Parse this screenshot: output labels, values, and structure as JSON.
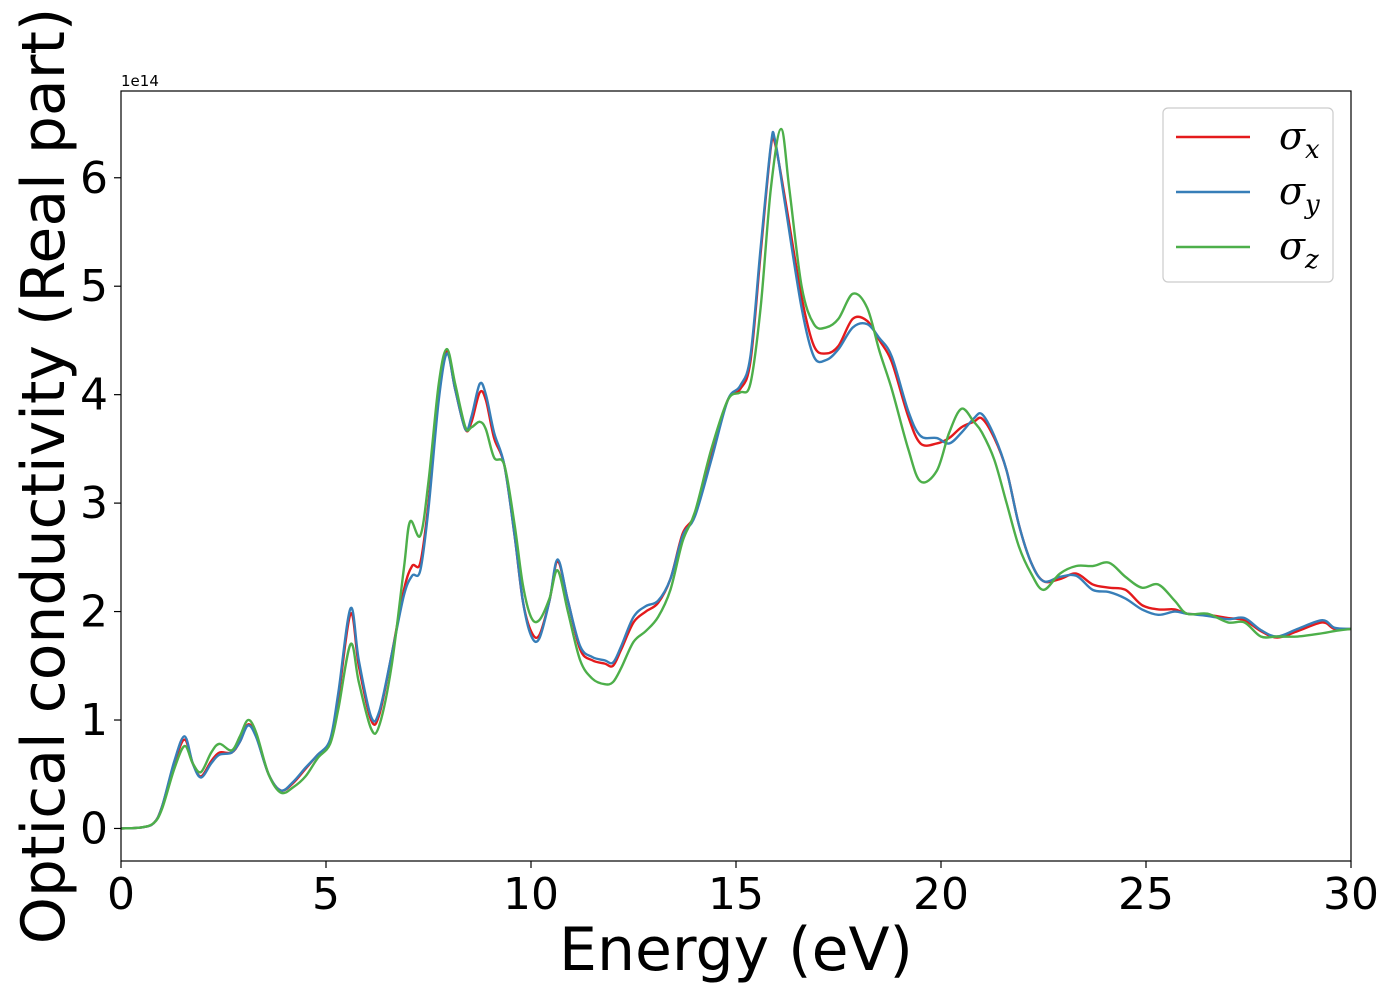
{
  "chart_data": {
    "type": "line",
    "xlabel": "Energy (eV)",
    "ylabel": "Optical conductivity (Real part)",
    "y_offset_label": "1e14",
    "y_scale": 100000000000000.0,
    "xlim": [
      0,
      30
    ],
    "ylim": [
      -0.3,
      6.8
    ],
    "xticks": [
      0,
      5,
      10,
      15,
      20,
      25,
      30
    ],
    "yticks": [
      0,
      1,
      2,
      3,
      4,
      5,
      6
    ],
    "xtick_labels": [
      "0",
      "5",
      "10",
      "15",
      "20",
      "25",
      "30"
    ],
    "ytick_labels": [
      "0",
      "1",
      "2",
      "3",
      "4",
      "5",
      "6"
    ],
    "grid": false,
    "legend_position": "top-right",
    "series": [
      {
        "name": "σx",
        "base": "σ",
        "sub": "x",
        "color": "#e41a1c",
        "points": [
          [
            0,
            0
          ],
          [
            0.5,
            0.01
          ],
          [
            0.8,
            0.05
          ],
          [
            1.0,
            0.2
          ],
          [
            1.3,
            0.6
          ],
          [
            1.55,
            0.82
          ],
          [
            1.75,
            0.6
          ],
          [
            1.95,
            0.48
          ],
          [
            2.2,
            0.62
          ],
          [
            2.4,
            0.7
          ],
          [
            2.7,
            0.7
          ],
          [
            2.9,
            0.8
          ],
          [
            3.1,
            0.96
          ],
          [
            3.3,
            0.85
          ],
          [
            3.6,
            0.5
          ],
          [
            3.9,
            0.35
          ],
          [
            4.2,
            0.42
          ],
          [
            4.5,
            0.55
          ],
          [
            4.8,
            0.68
          ],
          [
            5.1,
            0.8
          ],
          [
            5.3,
            1.2
          ],
          [
            5.6,
            1.98
          ],
          [
            5.8,
            1.5
          ],
          [
            6.1,
            1.0
          ],
          [
            6.3,
            1.05
          ],
          [
            6.6,
            1.6
          ],
          [
            6.9,
            2.2
          ],
          [
            7.1,
            2.42
          ],
          [
            7.3,
            2.45
          ],
          [
            7.5,
            3.0
          ],
          [
            7.75,
            4.0
          ],
          [
            7.95,
            4.4
          ],
          [
            8.15,
            4.05
          ],
          [
            8.4,
            3.68
          ],
          [
            8.55,
            3.75
          ],
          [
            8.75,
            4.02
          ],
          [
            8.9,
            3.95
          ],
          [
            9.1,
            3.6
          ],
          [
            9.35,
            3.35
          ],
          [
            9.6,
            2.7
          ],
          [
            9.8,
            2.1
          ],
          [
            10.0,
            1.82
          ],
          [
            10.2,
            1.78
          ],
          [
            10.45,
            2.1
          ],
          [
            10.65,
            2.46
          ],
          [
            10.9,
            2.1
          ],
          [
            11.2,
            1.65
          ],
          [
            11.5,
            1.55
          ],
          [
            11.8,
            1.52
          ],
          [
            12.0,
            1.5
          ],
          [
            12.2,
            1.65
          ],
          [
            12.5,
            1.9
          ],
          [
            12.8,
            2.0
          ],
          [
            13.1,
            2.08
          ],
          [
            13.4,
            2.3
          ],
          [
            13.7,
            2.72
          ],
          [
            14.0,
            2.9
          ],
          [
            14.4,
            3.45
          ],
          [
            14.8,
            3.95
          ],
          [
            15.1,
            4.05
          ],
          [
            15.35,
            4.3
          ],
          [
            15.6,
            5.3
          ],
          [
            15.85,
            6.28
          ],
          [
            15.95,
            6.32
          ],
          [
            16.2,
            5.8
          ],
          [
            16.6,
            4.9
          ],
          [
            16.9,
            4.45
          ],
          [
            17.2,
            4.38
          ],
          [
            17.5,
            4.45
          ],
          [
            17.85,
            4.7
          ],
          [
            18.2,
            4.68
          ],
          [
            18.5,
            4.5
          ],
          [
            18.8,
            4.3
          ],
          [
            19.2,
            3.8
          ],
          [
            19.5,
            3.55
          ],
          [
            19.9,
            3.55
          ],
          [
            20.2,
            3.6
          ],
          [
            20.5,
            3.7
          ],
          [
            20.8,
            3.75
          ],
          [
            21.0,
            3.78
          ],
          [
            21.3,
            3.6
          ],
          [
            21.6,
            3.3
          ],
          [
            21.9,
            2.8
          ],
          [
            22.2,
            2.45
          ],
          [
            22.5,
            2.28
          ],
          [
            22.9,
            2.3
          ],
          [
            23.3,
            2.35
          ],
          [
            23.7,
            2.25
          ],
          [
            24.1,
            2.22
          ],
          [
            24.5,
            2.2
          ],
          [
            24.9,
            2.06
          ],
          [
            25.3,
            2.02
          ],
          [
            25.7,
            2.02
          ],
          [
            26.0,
            1.98
          ],
          [
            26.5,
            1.97
          ],
          [
            27.0,
            1.94
          ],
          [
            27.4,
            1.92
          ],
          [
            27.8,
            1.82
          ],
          [
            28.2,
            1.76
          ],
          [
            28.7,
            1.82
          ],
          [
            29.3,
            1.9
          ],
          [
            29.6,
            1.84
          ],
          [
            30.0,
            1.84
          ]
        ]
      },
      {
        "name": "σy",
        "base": "σ",
        "sub": "y",
        "color": "#377eb8",
        "points": [
          [
            0,
            0
          ],
          [
            0.5,
            0.01
          ],
          [
            0.8,
            0.05
          ],
          [
            1.0,
            0.2
          ],
          [
            1.3,
            0.62
          ],
          [
            1.55,
            0.85
          ],
          [
            1.75,
            0.6
          ],
          [
            1.95,
            0.47
          ],
          [
            2.2,
            0.6
          ],
          [
            2.4,
            0.68
          ],
          [
            2.7,
            0.7
          ],
          [
            2.9,
            0.8
          ],
          [
            3.1,
            0.95
          ],
          [
            3.3,
            0.84
          ],
          [
            3.6,
            0.5
          ],
          [
            3.9,
            0.35
          ],
          [
            4.2,
            0.43
          ],
          [
            4.5,
            0.56
          ],
          [
            4.8,
            0.68
          ],
          [
            5.1,
            0.82
          ],
          [
            5.3,
            1.25
          ],
          [
            5.6,
            2.03
          ],
          [
            5.8,
            1.55
          ],
          [
            6.1,
            1.03
          ],
          [
            6.3,
            1.08
          ],
          [
            6.6,
            1.6
          ],
          [
            6.9,
            2.15
          ],
          [
            7.1,
            2.33
          ],
          [
            7.3,
            2.38
          ],
          [
            7.5,
            2.95
          ],
          [
            7.75,
            3.95
          ],
          [
            7.95,
            4.38
          ],
          [
            8.15,
            4.05
          ],
          [
            8.4,
            3.68
          ],
          [
            8.55,
            3.8
          ],
          [
            8.75,
            4.1
          ],
          [
            8.9,
            4.0
          ],
          [
            9.1,
            3.65
          ],
          [
            9.35,
            3.35
          ],
          [
            9.6,
            2.7
          ],
          [
            9.8,
            2.1
          ],
          [
            10.0,
            1.78
          ],
          [
            10.2,
            1.75
          ],
          [
            10.45,
            2.1
          ],
          [
            10.65,
            2.48
          ],
          [
            10.9,
            2.1
          ],
          [
            11.2,
            1.68
          ],
          [
            11.5,
            1.58
          ],
          [
            11.8,
            1.55
          ],
          [
            12.0,
            1.53
          ],
          [
            12.2,
            1.68
          ],
          [
            12.5,
            1.95
          ],
          [
            12.8,
            2.05
          ],
          [
            13.1,
            2.1
          ],
          [
            13.4,
            2.3
          ],
          [
            13.7,
            2.7
          ],
          [
            14.0,
            2.88
          ],
          [
            14.4,
            3.4
          ],
          [
            14.8,
            3.95
          ],
          [
            15.1,
            4.08
          ],
          [
            15.35,
            4.35
          ],
          [
            15.6,
            5.35
          ],
          [
            15.85,
            6.3
          ],
          [
            15.95,
            6.35
          ],
          [
            16.2,
            5.75
          ],
          [
            16.6,
            4.8
          ],
          [
            16.9,
            4.35
          ],
          [
            17.2,
            4.32
          ],
          [
            17.5,
            4.42
          ],
          [
            17.85,
            4.62
          ],
          [
            18.2,
            4.65
          ],
          [
            18.5,
            4.52
          ],
          [
            18.8,
            4.35
          ],
          [
            19.2,
            3.85
          ],
          [
            19.5,
            3.62
          ],
          [
            19.9,
            3.6
          ],
          [
            20.2,
            3.55
          ],
          [
            20.5,
            3.65
          ],
          [
            20.8,
            3.78
          ],
          [
            21.0,
            3.82
          ],
          [
            21.3,
            3.62
          ],
          [
            21.6,
            3.3
          ],
          [
            21.9,
            2.8
          ],
          [
            22.2,
            2.45
          ],
          [
            22.5,
            2.28
          ],
          [
            22.9,
            2.32
          ],
          [
            23.3,
            2.33
          ],
          [
            23.7,
            2.2
          ],
          [
            24.1,
            2.18
          ],
          [
            24.5,
            2.12
          ],
          [
            24.9,
            2.02
          ],
          [
            25.3,
            1.97
          ],
          [
            25.7,
            2.0
          ],
          [
            26.0,
            1.98
          ],
          [
            26.5,
            1.96
          ],
          [
            27.0,
            1.93
          ],
          [
            27.4,
            1.94
          ],
          [
            27.8,
            1.83
          ],
          [
            28.2,
            1.77
          ],
          [
            28.7,
            1.84
          ],
          [
            29.3,
            1.92
          ],
          [
            29.6,
            1.85
          ],
          [
            30.0,
            1.84
          ]
        ]
      },
      {
        "name": "σz",
        "base": "σ",
        "sub": "z",
        "color": "#4daf4a",
        "points": [
          [
            0,
            0
          ],
          [
            0.5,
            0.01
          ],
          [
            0.8,
            0.05
          ],
          [
            1.0,
            0.18
          ],
          [
            1.3,
            0.55
          ],
          [
            1.55,
            0.76
          ],
          [
            1.75,
            0.6
          ],
          [
            1.95,
            0.52
          ],
          [
            2.2,
            0.7
          ],
          [
            2.4,
            0.78
          ],
          [
            2.7,
            0.72
          ],
          [
            2.9,
            0.85
          ],
          [
            3.1,
            1.0
          ],
          [
            3.3,
            0.88
          ],
          [
            3.6,
            0.5
          ],
          [
            3.9,
            0.33
          ],
          [
            4.2,
            0.38
          ],
          [
            4.5,
            0.48
          ],
          [
            4.8,
            0.65
          ],
          [
            5.1,
            0.78
          ],
          [
            5.3,
            1.1
          ],
          [
            5.6,
            1.7
          ],
          [
            5.8,
            1.35
          ],
          [
            6.1,
            0.92
          ],
          [
            6.3,
            0.95
          ],
          [
            6.6,
            1.5
          ],
          [
            6.9,
            2.4
          ],
          [
            7.05,
            2.83
          ],
          [
            7.3,
            2.7
          ],
          [
            7.5,
            3.2
          ],
          [
            7.75,
            4.1
          ],
          [
            7.95,
            4.42
          ],
          [
            8.15,
            4.1
          ],
          [
            8.4,
            3.7
          ],
          [
            8.55,
            3.7
          ],
          [
            8.75,
            3.75
          ],
          [
            8.9,
            3.68
          ],
          [
            9.1,
            3.42
          ],
          [
            9.35,
            3.35
          ],
          [
            9.6,
            2.8
          ],
          [
            9.8,
            2.25
          ],
          [
            10.0,
            1.95
          ],
          [
            10.2,
            1.92
          ],
          [
            10.45,
            2.12
          ],
          [
            10.65,
            2.38
          ],
          [
            10.9,
            2.0
          ],
          [
            11.2,
            1.55
          ],
          [
            11.5,
            1.38
          ],
          [
            11.8,
            1.33
          ],
          [
            12.0,
            1.35
          ],
          [
            12.2,
            1.48
          ],
          [
            12.5,
            1.72
          ],
          [
            12.8,
            1.82
          ],
          [
            13.1,
            1.95
          ],
          [
            13.4,
            2.2
          ],
          [
            13.7,
            2.65
          ],
          [
            14.0,
            2.92
          ],
          [
            14.4,
            3.5
          ],
          [
            14.8,
            3.95
          ],
          [
            15.1,
            4.02
          ],
          [
            15.35,
            4.1
          ],
          [
            15.6,
            4.8
          ],
          [
            15.85,
            5.9
          ],
          [
            16.1,
            6.45
          ],
          [
            16.3,
            5.9
          ],
          [
            16.6,
            5.0
          ],
          [
            16.9,
            4.65
          ],
          [
            17.2,
            4.62
          ],
          [
            17.5,
            4.7
          ],
          [
            17.85,
            4.93
          ],
          [
            18.2,
            4.8
          ],
          [
            18.5,
            4.4
          ],
          [
            18.8,
            4.05
          ],
          [
            19.2,
            3.5
          ],
          [
            19.5,
            3.2
          ],
          [
            19.9,
            3.3
          ],
          [
            20.2,
            3.65
          ],
          [
            20.5,
            3.87
          ],
          [
            20.8,
            3.75
          ],
          [
            21.0,
            3.65
          ],
          [
            21.3,
            3.4
          ],
          [
            21.6,
            3.0
          ],
          [
            21.9,
            2.6
          ],
          [
            22.2,
            2.35
          ],
          [
            22.5,
            2.2
          ],
          [
            22.9,
            2.35
          ],
          [
            23.3,
            2.42
          ],
          [
            23.7,
            2.42
          ],
          [
            24.1,
            2.45
          ],
          [
            24.5,
            2.32
          ],
          [
            24.9,
            2.22
          ],
          [
            25.3,
            2.25
          ],
          [
            25.7,
            2.1
          ],
          [
            26.0,
            1.98
          ],
          [
            26.5,
            1.98
          ],
          [
            27.0,
            1.9
          ],
          [
            27.4,
            1.9
          ],
          [
            27.8,
            1.77
          ],
          [
            28.2,
            1.77
          ],
          [
            28.7,
            1.77
          ],
          [
            29.3,
            1.8
          ],
          [
            29.6,
            1.82
          ],
          [
            30.0,
            1.84
          ]
        ]
      }
    ]
  }
}
